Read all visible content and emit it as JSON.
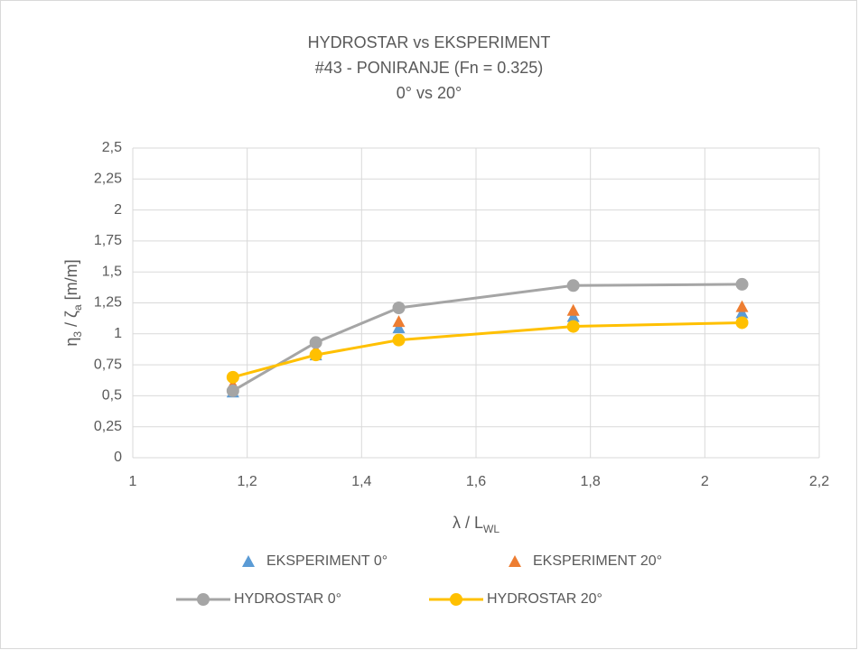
{
  "chart_data": {
    "type": "line",
    "title": [
      "HYDROSTAR vs EKSPERIMENT",
      "#43 - PONIRANJE (Fn = 0.325)",
      "0° vs 20°"
    ],
    "x_label": [
      {
        "text": "λ / L"
      },
      {
        "text": "WL",
        "sub": true
      }
    ],
    "y_label": [
      {
        "text": "η"
      },
      {
        "text": "3",
        "sub": true
      },
      {
        "text": " / ζ"
      },
      {
        "text": "a",
        "sub": true
      },
      {
        "text": "  [m/m]"
      }
    ],
    "x": [
      1.175,
      1.32,
      1.465,
      1.77,
      2.065
    ],
    "xlim": [
      1,
      2.2
    ],
    "xticks": [
      1,
      {
        "value": 1.2,
        "label": "1,2"
      },
      {
        "value": 1.4,
        "label": "1,4"
      },
      {
        "value": 1.6,
        "label": "1,6"
      },
      {
        "value": 1.8,
        "label": "1,8"
      },
      2,
      {
        "value": 2.2,
        "label": "2,2"
      }
    ],
    "ylim": [
      0,
      2.5
    ],
    "yticks": [
      0,
      {
        "value": 0.25,
        "label": "0,25"
      },
      {
        "value": 0.5,
        "label": "0,5"
      },
      {
        "value": 0.75,
        "label": "0,75"
      },
      1,
      {
        "value": 1.25,
        "label": "1,25"
      },
      {
        "value": 1.5,
        "label": "1,5"
      },
      {
        "value": 1.75,
        "label": "1,75"
      },
      2,
      {
        "value": 2.25,
        "label": "2,25"
      },
      {
        "value": 2.5,
        "label": "2,5"
      }
    ],
    "grid": true,
    "legend": "bottom",
    "series": [
      {
        "name": "EKSPERIMENT 0°",
        "color": "#5b9bd5",
        "marker": "triangle",
        "line": false,
        "values": [
          0.53,
          0.83,
          1.05,
          1.14,
          1.17
        ]
      },
      {
        "name": "EKSPERIMENT 20°",
        "color": "#ed7d31",
        "marker": "triangle",
        "line": false,
        "values": [
          0.59,
          0.87,
          1.1,
          1.19,
          1.22
        ]
      },
      {
        "name": "HYDROSTAR 0°",
        "color": "#a5a5a5",
        "marker": "circle",
        "line": true,
        "values": [
          0.54,
          0.93,
          1.21,
          1.39,
          1.4
        ]
      },
      {
        "name": "HYDROSTAR 20°",
        "color": "#ffc000",
        "marker": "circle",
        "line": true,
        "values": [
          0.65,
          0.83,
          0.95,
          1.06,
          1.09
        ]
      }
    ]
  }
}
